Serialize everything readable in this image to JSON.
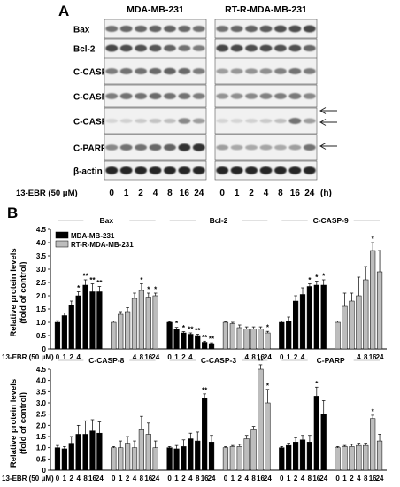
{
  "panel_a": {
    "letter": "A",
    "groups": [
      "MDA-MB-231",
      "RT-R-MDA-MB-231"
    ],
    "rows": [
      "Bax",
      "Bcl-2",
      "C-CASP-9",
      "C-CASP-8",
      "C-CASP-3",
      "C-PARP",
      "β-actin"
    ],
    "treatment_label": "13-EBR (50 μM)",
    "time_points": [
      "0",
      "1",
      "2",
      "4",
      "8",
      "16",
      "24"
    ],
    "time_unit": "(h)",
    "band_intensity": {
      "Bax": [
        [
          0.55,
          0.6,
          0.6,
          0.62,
          0.62,
          0.6,
          0.55
        ],
        [
          0.55,
          0.6,
          0.62,
          0.65,
          0.7,
          0.72,
          0.75
        ]
      ],
      "Bcl-2": [
        [
          0.75,
          0.72,
          0.7,
          0.68,
          0.62,
          0.55,
          0.5
        ],
        [
          0.75,
          0.74,
          0.72,
          0.72,
          0.7,
          0.7,
          0.6
        ]
      ],
      "C-CASP-9": [
        [
          0.5,
          0.55,
          0.55,
          0.58,
          0.62,
          0.58,
          0.5
        ],
        [
          0.35,
          0.38,
          0.4,
          0.42,
          0.48,
          0.55,
          0.5
        ]
      ],
      "C-CASP-8": [
        [
          0.5,
          0.55,
          0.55,
          0.58,
          0.55,
          0.55,
          0.5
        ],
        [
          0.4,
          0.42,
          0.45,
          0.48,
          0.5,
          0.52,
          0.45
        ]
      ],
      "C-CASP-3": [
        [
          0.1,
          0.12,
          0.15,
          0.18,
          0.2,
          0.45,
          0.35
        ],
        [
          0.1,
          0.1,
          0.12,
          0.15,
          0.2,
          0.55,
          0.35
        ]
      ],
      "C-PARP": [
        [
          0.45,
          0.55,
          0.55,
          0.6,
          0.62,
          0.85,
          0.85
        ],
        [
          0.35,
          0.3,
          0.3,
          0.32,
          0.3,
          0.35,
          0.55
        ]
      ],
      "β-actin": [
        [
          0.9,
          0.9,
          0.9,
          0.9,
          0.9,
          0.9,
          0.9
        ],
        [
          0.9,
          0.9,
          0.9,
          0.9,
          0.9,
          0.9,
          0.9
        ]
      ]
    }
  },
  "panel_b": {
    "letter": "B",
    "treatment_label": "13-EBR (50 μM)"
  },
  "chart_data": [
    {
      "type": "bar",
      "ylabel": "Relative protein levels (fold of control)",
      "ylim": [
        0,
        4.5
      ],
      "yticks": [
        "0",
        "0.5",
        "1.0",
        "1.5",
        "2.0",
        "2.5",
        "3.0",
        "3.5",
        "4.0",
        "4.5"
      ],
      "legend": {
        "placement": "top-left",
        "entries": [
          "MDA-MB-231",
          "RT-R-MDA-MB-231"
        ]
      },
      "colors": {
        "MDA-MB-231": "#000000",
        "RT-R-MDA-MB-231": "#bdbdbd"
      },
      "categories": [
        "0",
        "1",
        "2",
        "4",
        "8",
        "16",
        "24"
      ],
      "groups": [
        {
          "name": "Bax",
          "series": [
            {
              "name": "MDA-MB-231",
              "values": [
                1.0,
                1.25,
                1.65,
                2.0,
                2.4,
                2.15,
                2.15
              ],
              "errors": [
                0.06,
                0.1,
                0.15,
                0.15,
                0.2,
                0.3,
                0.2
              ],
              "sig": [
                "",
                "",
                "",
                "*",
                "**",
                "**",
                "**"
              ]
            },
            {
              "name": "RT-R-MDA-MB-231",
              "values": [
                1.0,
                1.3,
                1.4,
                1.9,
                2.2,
                1.95,
                2.0
              ],
              "errors": [
                0.05,
                0.1,
                0.15,
                0.2,
                0.25,
                0.15,
                0.1
              ],
              "sig": [
                "",
                "",
                "",
                "",
                "*",
                "*",
                "*"
              ]
            }
          ]
        },
        {
          "name": "Bcl-2",
          "series": [
            {
              "name": "MDA-MB-231",
              "values": [
                1.0,
                0.75,
                0.6,
                0.55,
                0.5,
                0.25,
                0.2
              ],
              "errors": [
                0.03,
                0.06,
                0.05,
                0.05,
                0.05,
                0.04,
                0.03
              ],
              "sig": [
                "",
                "*",
                "*",
                "**",
                "**",
                "**",
                "**"
              ]
            },
            {
              "name": "RT-R-MDA-MB-231",
              "values": [
                1.0,
                0.95,
                0.8,
                0.75,
                0.75,
                0.75,
                0.6
              ],
              "errors": [
                0.03,
                0.05,
                0.1,
                0.08,
                0.08,
                0.08,
                0.06
              ],
              "sig": [
                "",
                "",
                "",
                "",
                "",
                "",
                "*"
              ]
            }
          ]
        },
        {
          "name": "C-CASP-9",
          "series": [
            {
              "name": "MDA-MB-231",
              "values": [
                1.0,
                1.05,
                1.8,
                2.05,
                2.35,
                2.4,
                2.4
              ],
              "errors": [
                0.05,
                0.15,
                0.2,
                0.25,
                0.1,
                0.15,
                0.2
              ],
              "sig": [
                "",
                "",
                "",
                "",
                "*",
                "*",
                "*"
              ]
            },
            {
              "name": "RT-R-MDA-MB-231",
              "values": [
                1.0,
                1.6,
                1.8,
                2.0,
                2.6,
                3.7,
                2.9
              ],
              "errors": [
                0.05,
                0.5,
                0.3,
                0.7,
                0.5,
                0.3,
                0.8
              ],
              "sig": [
                "",
                "",
                "",
                "",
                "",
                "*",
                ""
              ]
            }
          ]
        },
        {
          "name": "C-CASP-8",
          "series": [
            {
              "name": "MDA-MB-231",
              "values": [
                1.0,
                0.95,
                1.2,
                1.6,
                1.6,
                1.75,
                1.65
              ],
              "errors": [
                0.1,
                0.1,
                0.3,
                0.4,
                0.6,
                0.5,
                0.5
              ],
              "sig": [
                "",
                "",
                "",
                "",
                "",
                "",
                ""
              ]
            },
            {
              "name": "RT-R-MDA-MB-231",
              "values": [
                1.0,
                1.0,
                1.2,
                1.0,
                1.8,
                1.6,
                1.0
              ],
              "errors": [
                0.05,
                0.3,
                0.3,
                0.3,
                0.6,
                0.5,
                0.3
              ],
              "sig": [
                "",
                "",
                "",
                "",
                "",
                "",
                ""
              ]
            }
          ]
        },
        {
          "name": "C-CASP-3",
          "series": [
            {
              "name": "MDA-MB-231",
              "values": [
                1.0,
                0.95,
                1.05,
                1.4,
                1.3,
                3.2,
                1.25
              ],
              "errors": [
                0.05,
                0.15,
                0.3,
                0.25,
                0.4,
                0.2,
                0.3
              ],
              "sig": [
                "",
                "",
                "",
                "",
                "",
                "**",
                ""
              ]
            },
            {
              "name": "RT-R-MDA-MB-231",
              "values": [
                1.0,
                1.05,
                1.05,
                1.4,
                1.8,
                4.5,
                3.0
              ],
              "errors": [
                0.05,
                0.05,
                0.1,
                0.15,
                0.15,
                0.2,
                0.6
              ],
              "sig": [
                "",
                "",
                "",
                "",
                "",
                "**",
                "*"
              ]
            }
          ]
        },
        {
          "name": "C-PARP",
          "series": [
            {
              "name": "MDA-MB-231",
              "values": [
                1.0,
                1.1,
                1.25,
                1.35,
                1.25,
                3.3,
                2.5
              ],
              "errors": [
                0.05,
                0.1,
                0.2,
                0.2,
                0.3,
                0.4,
                0.6
              ],
              "sig": [
                "",
                "",
                "",
                "",
                "",
                "*",
                ""
              ]
            },
            {
              "name": "RT-R-MDA-MB-231",
              "values": [
                1.0,
                1.05,
                1.05,
                1.1,
                1.1,
                2.3,
                1.3
              ],
              "errors": [
                0.05,
                0.05,
                0.1,
                0.1,
                0.1,
                0.15,
                0.3
              ],
              "sig": [
                "",
                "",
                "",
                "",
                "",
                "*",
                ""
              ]
            }
          ]
        }
      ]
    }
  ]
}
